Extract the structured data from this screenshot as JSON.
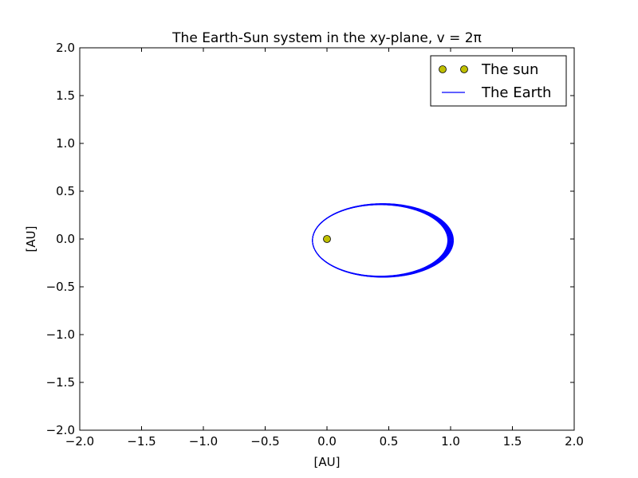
{
  "chart_data": {
    "type": "line",
    "title": "The Earth-Sun system in the xy-plane, v = 2π",
    "xlabel": "[AU]",
    "ylabel": "[AU]",
    "xlim": [
      -2.0,
      2.0
    ],
    "ylim": [
      -2.0,
      2.0
    ],
    "xticks": [
      "−2.0",
      "−1.5",
      "−1.0",
      "−0.5",
      "0.0",
      "0.5",
      "1.0",
      "1.5",
      "2.0"
    ],
    "yticks": [
      "2.0",
      "1.5",
      "1.0",
      "0.5",
      "0.0",
      "−0.5",
      "−1.0",
      "−1.5",
      "−2.0"
    ],
    "grid": false,
    "legend_placement": "upper right",
    "series": [
      {
        "name": "The sun",
        "kind": "markers",
        "color": "#bfbf00",
        "points": [
          [
            0.0,
            0.0
          ]
        ]
      },
      {
        "name": "The Earth",
        "kind": "line",
        "color": "#0000ff",
        "orbit": {
          "x_min": -0.14,
          "x_max": 1.0,
          "y_min": -0.4,
          "y_max": 0.37,
          "precession_bands": 12
        }
      }
    ]
  }
}
